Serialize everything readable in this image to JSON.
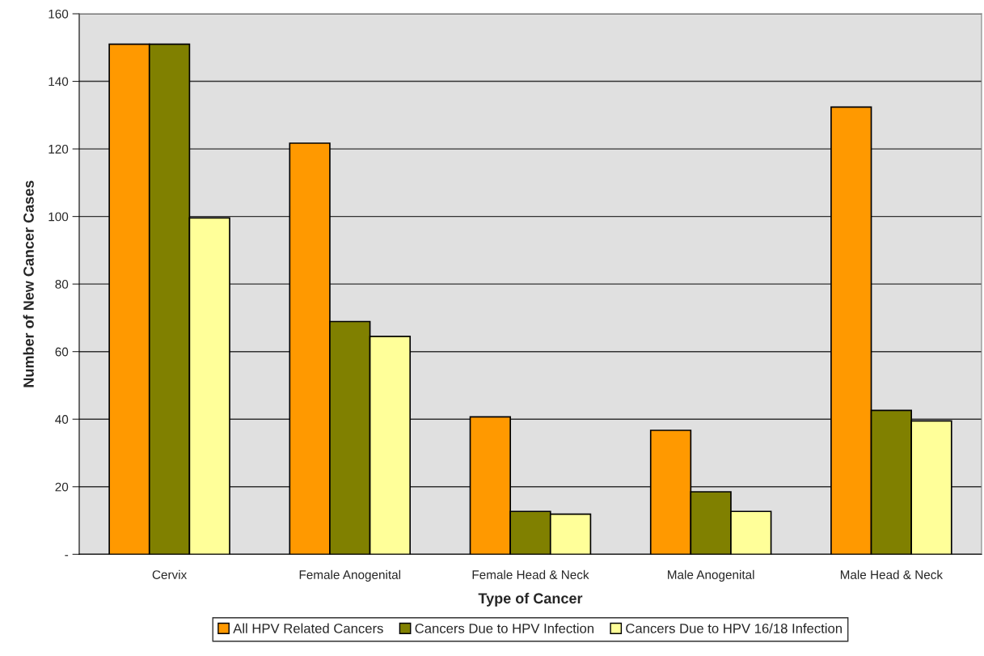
{
  "chart_data": {
    "type": "bar",
    "xlabel": "Type of Cancer",
    "ylabel": "Number of New Cancer Cases",
    "categories": [
      "Cervix",
      "Female Anogenital",
      "Female Head & Neck",
      "Male Anogenital",
      "Male Head & Neck"
    ],
    "series": [
      {
        "name": "All HPV Related Cancers",
        "color": "#ff9900",
        "values": [
          151,
          121.7,
          40.7,
          36.7,
          132.4
        ]
      },
      {
        "name": "Cancers Due to HPV Infection",
        "color": "#808000",
        "values": [
          151,
          68.9,
          12.7,
          18.5,
          42.6
        ]
      },
      {
        "name": "Cancers Due to HPV 16/18 Infection",
        "color": "#ffff99",
        "values": [
          99.6,
          64.5,
          11.9,
          12.7,
          39.5
        ]
      }
    ],
    "ylim": [
      0,
      160
    ],
    "yticks": [
      {
        "value": 0,
        "label": "-"
      },
      20,
      40,
      60,
      80,
      100,
      120,
      140,
      160
    ],
    "grid": "y",
    "legend": "bottom"
  }
}
